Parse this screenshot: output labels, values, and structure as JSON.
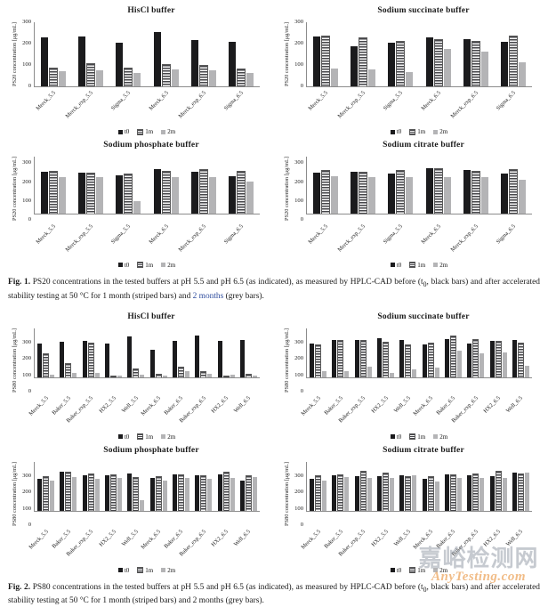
{
  "figure1": {
    "label": "Fig. 1.",
    "caption_pre": "PS20 concentrations in the tested buffers at pH 5.5 and pH 6.5 (as indicated), as measured by HPLC-CAD before (t",
    "caption_sub": "0",
    "caption_mid": ", black bars) and after accelerated stability testing at 50 °C for 1 month (striped bars) and ",
    "caption_link": "2 months",
    "caption_post": " (grey bars)."
  },
  "figure2": {
    "label": "Fig. 2.",
    "caption_pre": "PS80 concentrations in the tested buffers at pH 5.5 and pH 6.5 (as indicated), as measured by HPLC-CAD before (t",
    "caption_sub": "0",
    "caption_mid": ", black bars) and after accelerated stability testing at 50 °C for 1 month (striped bars) and ",
    "caption_link": "2 months",
    "caption_post": " (grey bars)."
  },
  "watermark": {
    "cn": "嘉峪检测网",
    "en": "AnyTesting.com",
    "cn_color": "#989eaa",
    "en_color": "#e99846"
  },
  "colors": {
    "t0_bar": "#1b1b1d",
    "stripe_bar": "#46464a",
    "grey_bar": "#b4b4b6",
    "axis": "#8c8c8c"
  },
  "chart_data": [
    {
      "type": "bar",
      "title": "HisCl buffer",
      "ylabel": "PS20 concentration [μg/mL]",
      "ylim": [
        0,
        300
      ],
      "yticks": [
        0,
        100,
        200,
        300
      ],
      "grid": false,
      "legend_position": "bottom",
      "categories": [
        "Merck_5.5",
        "Merck_exp_5.5",
        "Sigma_5.5",
        "Merck_6.5",
        "Merck_exp_6.5",
        "Sigma_6.5"
      ],
      "legend": [
        "t0",
        "1m",
        "2m"
      ],
      "series": [
        {
          "name": "t0",
          "values": [
            230,
            235,
            205,
            255,
            217,
            208
          ]
        },
        {
          "name": "1m",
          "values": [
            85,
            103,
            82,
            98,
            95,
            80
          ]
        },
        {
          "name": "2m",
          "values": [
            72,
            74,
            63,
            78,
            76,
            63
          ]
        }
      ]
    },
    {
      "type": "bar",
      "title": "Sodium succinate buffer",
      "ylabel": "PS20 concentration [μg/mL]",
      "ylim": [
        0,
        300
      ],
      "yticks": [
        0,
        100,
        200,
        300
      ],
      "grid": false,
      "legend_position": "bottom",
      "categories": [
        "Merck_5.5",
        "Merck_exp_5.5",
        "Sigma_5.5",
        "Merck_6.5",
        "Merck_exp_6.5",
        "Sigma_6.5"
      ],
      "legend": [
        "t0",
        "1m",
        "2m"
      ],
      "series": [
        {
          "name": "t0",
          "values": [
            232,
            186,
            203,
            230,
            220,
            208
          ]
        },
        {
          "name": "1m",
          "values": [
            232,
            224,
            210,
            216,
            210,
            233
          ]
        },
        {
          "name": "2m",
          "values": [
            82,
            78,
            65,
            173,
            164,
            113
          ]
        }
      ]
    },
    {
      "type": "bar",
      "title": "Sodium phosphate buffer",
      "ylabel": "PS20 concentration [μg/mL]",
      "ylim": [
        0,
        300
      ],
      "yticks": [
        0,
        100,
        200,
        300
      ],
      "grid": false,
      "legend_position": "bottom",
      "categories": [
        "Merck_5.5",
        "Merck_exp_5.5",
        "Sigma_5.5",
        "Merck_6.5",
        "Merck_exp_6.5",
        "Sigma_6.5"
      ],
      "legend": [
        "t0",
        "1m",
        "2m"
      ],
      "series": [
        {
          "name": "t0",
          "values": [
            221,
            215,
            203,
            233,
            222,
            197
          ]
        },
        {
          "name": "1m",
          "values": [
            219,
            212,
            207,
            219,
            232,
            220
          ]
        },
        {
          "name": "2m",
          "values": [
            194,
            194,
            67,
            193,
            193,
            170
          ]
        }
      ]
    },
    {
      "type": "bar",
      "title": "Sodium citrate buffer",
      "ylabel": "PS20 concentration [μg/mL]",
      "ylim": [
        0,
        300
      ],
      "yticks": [
        0,
        100,
        200,
        300
      ],
      "grid": false,
      "legend_position": "bottom",
      "categories": [
        "Merck_5.5",
        "Merck_exp_5.5",
        "Sigma_5.5",
        "Merck_6.5",
        "Merck_exp_6.5",
        "Sigma_6.5"
      ],
      "legend": [
        "t0",
        "1m",
        "2m"
      ],
      "series": [
        {
          "name": "t0",
          "values": [
            217,
            221,
            213,
            237,
            232,
            212
          ]
        },
        {
          "name": "1m",
          "values": [
            223,
            216,
            223,
            233,
            221,
            232
          ]
        },
        {
          "name": "2m",
          "values": [
            197,
            192,
            191,
            194,
            190,
            177
          ]
        }
      ]
    },
    {
      "type": "bar",
      "title": "HisCl buffer",
      "ylabel": "PS80 concentration [μg/mL]",
      "ylim": [
        0,
        300
      ],
      "yticks": [
        0,
        100,
        200,
        300
      ],
      "grid": false,
      "legend_position": "bottom",
      "categories": [
        "Merck_5.5",
        "Baker_5.5",
        "Baker_exp_5.5",
        "HX2_5.5",
        "Well_5.5",
        "Merck_6.5",
        "Baker_6.5",
        "Baker_exp_6.5",
        "HX2_6.5",
        "Well_6.5"
      ],
      "legend": [
        "t0",
        "1m",
        "2m"
      ],
      "series": [
        {
          "name": "t0",
          "values": [
            207,
            215,
            222,
            205,
            250,
            168,
            220,
            252,
            222,
            225
          ]
        },
        {
          "name": "1m",
          "values": [
            138,
            78,
            207,
            3,
            45,
            17,
            60,
            33,
            3,
            15
          ]
        },
        {
          "name": "2m",
          "values": [
            17,
            25,
            25,
            10,
            15,
            8,
            38,
            20,
            12,
            10
          ]
        }
      ]
    },
    {
      "type": "bar",
      "title": "Sodium succinate buffer",
      "ylabel": "PS80 concentration [μg/mL]",
      "ylim": [
        0,
        300
      ],
      "yticks": [
        0,
        100,
        200,
        300
      ],
      "grid": false,
      "legend_position": "bottom",
      "categories": [
        "Merck_5.5",
        "Baker_5.5",
        "Baker_exp_5.5",
        "HX2_5.5",
        "Well_5.5",
        "Merck_6.5",
        "Baker_6.5",
        "Baker_exp_6.5",
        "HX2_6.5",
        "Well_6.5"
      ],
      "legend": [
        "t0",
        "1m",
        "2m"
      ],
      "series": [
        {
          "name": "t0",
          "values": [
            207,
            230,
            227,
            237,
            230,
            202,
            233,
            207,
            222,
            226
          ]
        },
        {
          "name": "1m",
          "values": [
            195,
            224,
            222,
            213,
            196,
            203,
            247,
            227,
            218,
            207
          ]
        },
        {
          "name": "2m",
          "values": [
            37,
            38,
            62,
            27,
            45,
            58,
            163,
            148,
            150,
            68
          ]
        }
      ]
    },
    {
      "type": "bar",
      "title": "Sodium phosphate buffer",
      "ylabel": "PS80 concentration [μg/mL]",
      "ylim": [
        0,
        300
      ],
      "yticks": [
        0,
        100,
        200,
        300
      ],
      "grid": false,
      "legend_position": "bottom",
      "categories": [
        "Merck_5.5",
        "Baker_5.5",
        "Baker_exp_5.5",
        "HX2_5.5",
        "Well_5.5",
        "Merck_6.5",
        "Baker_6.5",
        "Baker_exp_6.5",
        "HX2_6.5",
        "Well_6.5"
      ],
      "legend": [
        "t0",
        "1m",
        "2m"
      ],
      "series": [
        {
          "name": "t0",
          "values": [
            193,
            237,
            217,
            217,
            226,
            202,
            220,
            215,
            220,
            183
          ]
        },
        {
          "name": "1m",
          "values": [
            207,
            235,
            222,
            218,
            198,
            205,
            218,
            213,
            230,
            210
          ]
        },
        {
          "name": "2m",
          "values": [
            182,
            203,
            192,
            197,
            62,
            183,
            200,
            193,
            200,
            207
          ]
        }
      ]
    },
    {
      "type": "bar",
      "title": "Sodium citrate buffer",
      "ylabel": "PS80 concentration [μg/mL]",
      "ylim": [
        0,
        300
      ],
      "yticks": [
        0,
        100,
        200,
        300
      ],
      "grid": false,
      "legend_position": "bottom",
      "categories": [
        "Merck_5.5",
        "Baker_5.5",
        "Baker_exp_5.5",
        "HX2_5.5",
        "Well_5.5",
        "Merck_6.5",
        "Baker_6.5",
        "Baker_exp_6.5",
        "HX2_6.5",
        "Well_6.5"
      ],
      "legend": [
        "t0",
        "1m",
        "2m"
      ],
      "series": [
        {
          "name": "t0",
          "values": [
            196,
            218,
            210,
            209,
            216,
            196,
            222,
            216,
            208,
            230
          ]
        },
        {
          "name": "1m",
          "values": [
            208,
            216,
            236,
            229,
            207,
            207,
            215,
            221,
            237,
            219
          ]
        },
        {
          "name": "2m",
          "values": [
            182,
            204,
            200,
            200,
            218,
            180,
            202,
            200,
            202,
            235
          ]
        }
      ]
    }
  ]
}
